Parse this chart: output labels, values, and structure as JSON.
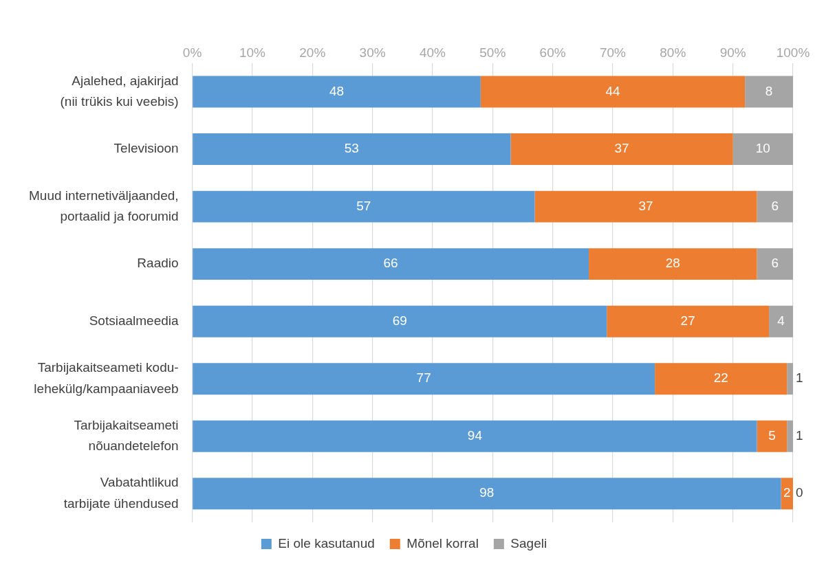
{
  "chart_data": {
    "type": "bar",
    "orientation": "horizontal",
    "stacked": true,
    "categories": [
      "Ajalehed, ajakirjad\n(nii trükis kui veebis)",
      "Televisioon",
      "Muud internetiväljaanded,\nportaalid ja foorumid",
      "Raadio",
      "Sotsiaalmeedia",
      "Tarbijakaitseameti kodu-\nlehekülg/kampaaniaveeb",
      "Tarbijakaitseameti\nnõuandetelefon",
      "Vabatahtlikud\ntarbijate ühendused"
    ],
    "series": [
      {
        "name": "Ei ole kasutanud",
        "color": "#5b9bd5",
        "values": [
          48,
          53,
          57,
          66,
          69,
          77,
          94,
          98
        ]
      },
      {
        "name": "Mõnel korral",
        "color": "#ed7d31",
        "values": [
          44,
          37,
          37,
          28,
          27,
          22,
          5,
          2
        ]
      },
      {
        "name": "Sageli",
        "color": "#a5a5a5",
        "values": [
          8,
          10,
          6,
          6,
          4,
          1,
          1,
          0
        ]
      }
    ],
    "xlim": [
      0,
      100
    ],
    "xticks": [
      {
        "value": 0,
        "label": "0%"
      },
      {
        "value": 10,
        "label": "10%"
      },
      {
        "value": 20,
        "label": "20%"
      },
      {
        "value": 30,
        "label": "30%"
      },
      {
        "value": 40,
        "label": "40%"
      },
      {
        "value": 50,
        "label": "50%"
      },
      {
        "value": 60,
        "label": "60%"
      },
      {
        "value": 70,
        "label": "70%"
      },
      {
        "value": 80,
        "label": "80%"
      },
      {
        "value": 90,
        "label": "90%"
      },
      {
        "value": 100,
        "label": "100%"
      }
    ],
    "grid": "x",
    "legend": "bottom",
    "data_labels": true
  }
}
